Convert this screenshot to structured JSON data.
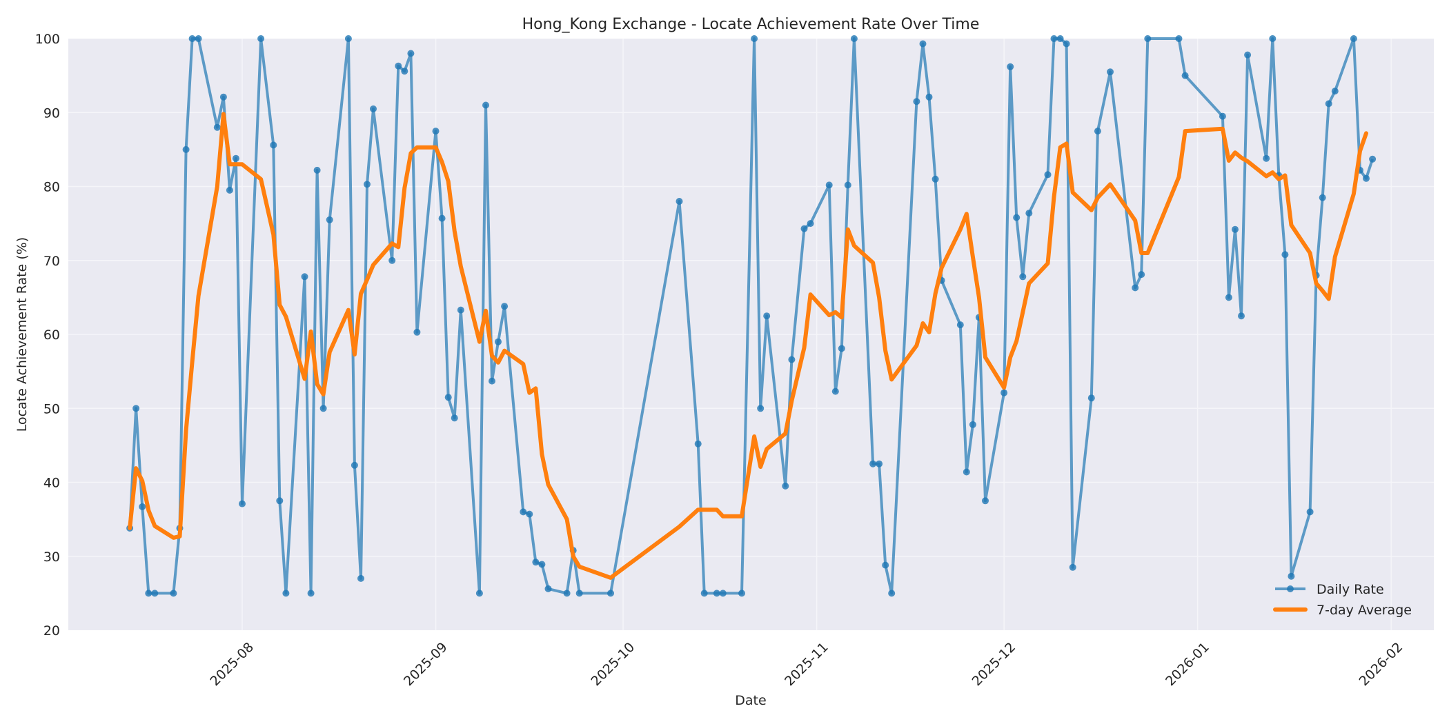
{
  "chart_data": {
    "type": "line",
    "title": "Hong_Kong Exchange - Locate Achievement Rate Over Time",
    "xlabel": "Date",
    "ylabel": "Locate Achievement Rate (%)",
    "ylim": [
      20,
      100
    ],
    "xlim": [
      "2025-07-07",
      "2026-02-03"
    ],
    "yticks": [
      20,
      30,
      40,
      50,
      60,
      70,
      80,
      90,
      100
    ],
    "xticks": [
      "2025-08",
      "2025-09",
      "2025-10",
      "2025-11",
      "2025-12",
      "2026-01",
      "2026-02"
    ],
    "grid": true,
    "legend_position": "lower right",
    "colors": {
      "daily": "#1f77b4",
      "average": "#ff7f0e",
      "plot_bg": "#eaeaf2",
      "grid": "#f4f4f8"
    },
    "x": [
      "2025-07-14",
      "2025-07-15",
      "2025-07-16",
      "2025-07-17",
      "2025-07-18",
      "2025-07-21",
      "2025-07-22",
      "2025-07-23",
      "2025-07-24",
      "2025-07-25",
      "2025-07-28",
      "2025-07-29",
      "2025-07-30",
      "2025-07-31",
      "2025-08-01",
      "2025-08-04",
      "2025-08-06",
      "2025-08-07",
      "2025-08-08",
      "2025-08-11",
      "2025-08-12",
      "2025-08-13",
      "2025-08-14",
      "2025-08-15",
      "2025-08-18",
      "2025-08-19",
      "2025-08-20",
      "2025-08-21",
      "2025-08-22",
      "2025-08-25",
      "2025-08-26",
      "2025-08-27",
      "2025-08-28",
      "2025-08-29",
      "2025-09-01",
      "2025-09-02",
      "2025-09-03",
      "2025-09-04",
      "2025-09-05",
      "2025-09-08",
      "2025-09-09",
      "2025-09-10",
      "2025-09-11",
      "2025-09-12",
      "2025-09-15",
      "2025-09-16",
      "2025-09-17",
      "2025-09-18",
      "2025-09-19",
      "2025-09-22",
      "2025-09-23",
      "2025-09-24",
      "2025-09-29",
      "2025-10-10",
      "2025-10-13",
      "2025-10-14",
      "2025-10-16",
      "2025-10-17",
      "2025-10-20",
      "2025-10-22",
      "2025-10-23",
      "2025-10-24",
      "2025-10-27",
      "2025-10-28",
      "2025-10-30",
      "2025-10-31",
      "2025-11-03",
      "2025-11-04",
      "2025-11-05",
      "2025-11-06",
      "2025-11-07",
      "2025-11-10",
      "2025-11-11",
      "2025-11-12",
      "2025-11-13",
      "2025-11-17",
      "2025-11-18",
      "2025-11-19",
      "2025-11-20",
      "2025-11-21",
      "2025-11-24",
      "2025-11-25",
      "2025-11-26",
      "2025-11-27",
      "2025-11-28",
      "2025-12-01",
      "2025-12-02",
      "2025-12-03",
      "2025-12-04",
      "2025-12-05",
      "2025-12-08",
      "2025-12-09",
      "2025-12-10",
      "2025-12-11",
      "2025-12-12",
      "2025-12-15",
      "2025-12-16",
      "2025-12-18",
      "2025-12-22",
      "2025-12-23",
      "2025-12-24",
      "2025-12-29",
      "2025-12-30",
      "2026-01-05",
      "2026-01-06",
      "2026-01-07",
      "2026-01-08",
      "2026-01-09",
      "2026-01-12",
      "2026-01-13",
      "2026-01-14",
      "2026-01-15",
      "2026-01-16",
      "2026-01-19",
      "2026-01-20",
      "2026-01-21",
      "2026-01-22",
      "2026-01-23",
      "2026-01-26",
      "2026-01-27",
      "2026-01-28",
      "2026-01-29"
    ],
    "series": [
      {
        "name": "Daily Rate",
        "values": [
          33.8,
          50.0,
          36.7,
          25.0,
          25.0,
          25.0,
          33.8,
          85.0,
          100,
          100,
          88.0,
          92.1,
          79.5,
          83.8,
          37.1,
          100,
          85.6,
          37.5,
          25.0,
          67.8,
          25.0,
          82.2,
          50.0,
          75.5,
          100,
          42.3,
          27.0,
          80.3,
          90.5,
          70.0,
          96.3,
          95.6,
          98.0,
          60.3,
          87.5,
          75.7,
          51.5,
          48.7,
          63.3,
          25.0,
          91.0,
          53.7,
          59.0,
          63.8,
          36.0,
          35.7,
          29.2,
          28.9,
          25.6,
          25.0,
          30.8,
          25.0,
          25.0,
          78.0,
          45.2,
          25.0,
          25.0,
          25.0,
          25.0,
          100,
          50.0,
          62.5,
          39.5,
          56.6,
          74.3,
          75.0,
          80.2,
          52.3,
          58.1,
          80.2,
          100,
          42.5,
          42.5,
          28.8,
          25.0,
          91.5,
          99.3,
          92.1,
          81.0,
          67.3,
          61.3,
          41.4,
          47.8,
          62.3,
          37.5,
          52.1,
          96.2,
          75.8,
          67.8,
          76.4,
          81.6,
          100,
          100,
          99.3,
          28.5,
          51.4,
          87.5,
          95.5,
          66.3,
          68.1,
          100,
          100,
          95.0,
          89.5,
          65.0,
          74.2,
          62.5,
          97.8,
          83.8,
          100,
          81.5,
          70.8,
          27.3,
          36.0,
          68.0,
          78.5,
          91.2,
          92.9,
          100,
          82.2,
          81.1,
          83.7
        ]
      },
      {
        "name": "7-day Average",
        "values": [
          33.8,
          41.9,
          40.2,
          36.2,
          34.1,
          32.5,
          32.7,
          47.0,
          56.3,
          65.2,
          80.0,
          89.8,
          83.0,
          83.0,
          83.0,
          81.0,
          73.5,
          64.0,
          62.4,
          54.0,
          60.4,
          53.3,
          51.9,
          57.6,
          63.3,
          57.3,
          65.5,
          67.4,
          69.4,
          72.3,
          71.8,
          79.8,
          84.5,
          85.3,
          85.3,
          83.3,
          80.7,
          74.0,
          69.2,
          59.0,
          63.2,
          57.1,
          56.2,
          57.8,
          56.0,
          52.1,
          52.7,
          43.8,
          39.7,
          35.0,
          30.0,
          28.6,
          27.1,
          34.0,
          36.3,
          36.3,
          36.3,
          35.4,
          35.4,
          46.2,
          42.1,
          44.5,
          46.6,
          51.0,
          58.2,
          65.4,
          62.6,
          63.0,
          62.3,
          74.2,
          72.0,
          69.7,
          65.0,
          57.8,
          53.9,
          58.5,
          61.5,
          60.3,
          65.5,
          69.0,
          74.2,
          76.3,
          70.5,
          65.0,
          56.9,
          52.8,
          56.9,
          59.1,
          63.0,
          66.9,
          69.6,
          78.6,
          85.3,
          85.8,
          79.2,
          76.8,
          78.5,
          80.3,
          75.4,
          71.0,
          71.0,
          81.3,
          87.5,
          87.8,
          83.5,
          84.6,
          83.9,
          83.4,
          81.4,
          81.9,
          81.0,
          81.5,
          74.8,
          71.0,
          66.9,
          65.9,
          64.8,
          70.5,
          79.0,
          84.8,
          87.2
        ]
      }
    ]
  },
  "legend": {
    "items": [
      {
        "label": "Daily Rate",
        "marker": "line-with-dot"
      },
      {
        "label": "7-day Average",
        "marker": "thick-line"
      }
    ]
  }
}
